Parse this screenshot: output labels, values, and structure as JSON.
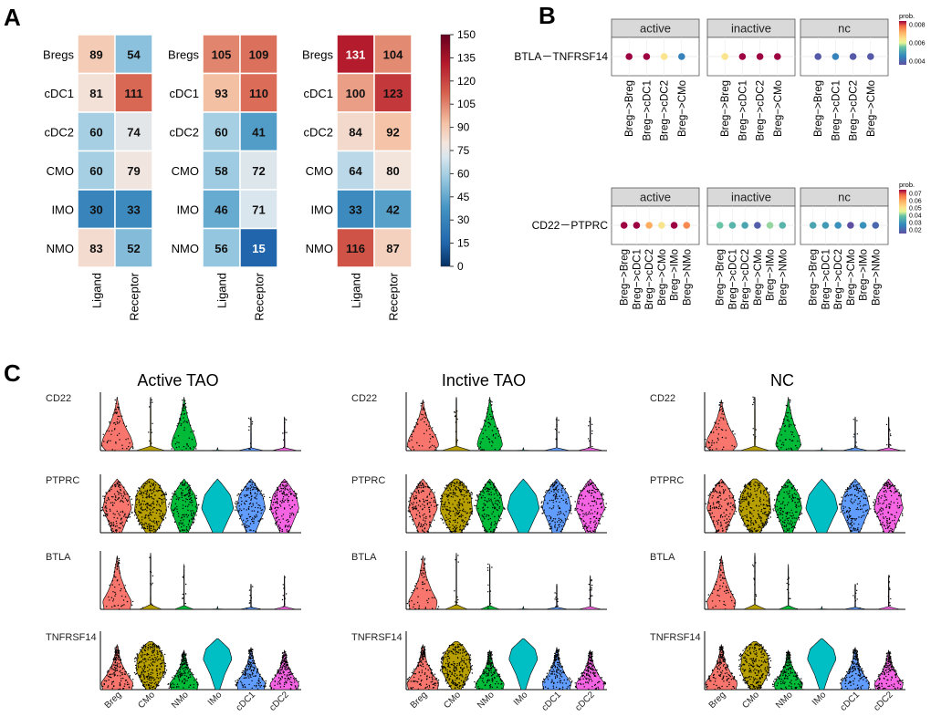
{
  "panel_labels": {
    "a": "A",
    "b": "B",
    "c": "C"
  },
  "heatmap": {
    "rows": [
      "Bregs",
      "cDC1",
      "cDC2",
      "CMO",
      "IMO",
      "NMO"
    ],
    "cols": [
      "Ligand",
      "Receptor"
    ],
    "colorbar_ticks": [
      "150",
      "135",
      "120",
      "105",
      "90",
      "75",
      "60",
      "45",
      "30",
      "15",
      "0"
    ]
  },
  "panel_b": {
    "top": {
      "row_label": "BTLA－TNFRSF14",
      "facets": [
        "active",
        "inactive",
        "nc"
      ],
      "pairs": [
        "Breg−>Breg",
        "Breg−>cDC1",
        "Breg−>cDC2",
        "Breg−>CMo"
      ],
      "legend_title": "prob.",
      "legend_ticks": [
        "0.008",
        "0.006",
        "0.004"
      ]
    },
    "bottom": {
      "row_label": "CD22－PTPRC",
      "facets": [
        "active",
        "inactive",
        "nc"
      ],
      "pairs": [
        "Breg−>Breg",
        "Breg−>cDC1",
        "Breg−>cDC2",
        "Breg−>CMo",
        "Breg−>IMo",
        "Breg−>NMo"
      ],
      "legend_title": "prob.",
      "legend_ticks": [
        "0.07",
        "0.06",
        "0.05",
        "0.04",
        "0.03",
        "0.02"
      ]
    }
  },
  "panel_c": {
    "titles": [
      "Active TAO",
      "Inctive TAO",
      "NC"
    ],
    "genes": [
      "CD22",
      "PTPRC",
      "BTLA",
      "TNFRSF14"
    ],
    "cell_types": [
      "Breg",
      "CMo",
      "NMo",
      "IMo",
      "cDC1",
      "cDC2"
    ]
  },
  "colors": {
    "Breg": "#f8766d",
    "CMo": "#b79f00",
    "NMo": "#00ba38",
    "IMo": "#00bfc4",
    "cDC1": "#619cff",
    "cDC2": "#f564e3"
  },
  "chart_data": [
    {
      "type": "heatmap",
      "title": "",
      "rows": [
        "Bregs",
        "cDC1",
        "cDC2",
        "CMO",
        "IMO",
        "NMO"
      ],
      "cols": [
        "Ligand",
        "Receptor"
      ],
      "values": [
        [
          89,
          54
        ],
        [
          81,
          111
        ],
        [
          60,
          74
        ],
        [
          60,
          79
        ],
        [
          30,
          33
        ],
        [
          83,
          52
        ]
      ],
      "color_range": [
        0,
        150
      ]
    },
    {
      "type": "heatmap",
      "title": "",
      "rows": [
        "Bregs",
        "cDC1",
        "cDC2",
        "CMO",
        "IMO",
        "NMO"
      ],
      "cols": [
        "Ligand",
        "Receptor"
      ],
      "values": [
        [
          105,
          109
        ],
        [
          93,
          110
        ],
        [
          60,
          41
        ],
        [
          58,
          72
        ],
        [
          46,
          71
        ],
        [
          56,
          15
        ]
      ],
      "color_range": [
        0,
        150
      ]
    },
    {
      "type": "heatmap",
      "title": "",
      "rows": [
        "Bregs",
        "cDC1",
        "cDC2",
        "CMO",
        "IMO",
        "NMO"
      ],
      "cols": [
        "Ligand",
        "Receptor"
      ],
      "values": [
        [
          131,
          104
        ],
        [
          100,
          123
        ],
        [
          84,
          92
        ],
        [
          64,
          80
        ],
        [
          33,
          42
        ],
        [
          116,
          87
        ]
      ],
      "color_range": [
        0,
        150
      ]
    },
    {
      "type": "scatter",
      "title": "",
      "series_label": "BTLA－TNFRSF14",
      "color_range": [
        0.003,
        0.0085
      ],
      "facets": [
        {
          "name": "active",
          "x": [
            "Breg−>Breg",
            "Breg−>cDC1",
            "Breg−>cDC2",
            "Breg−>CMo"
          ],
          "prob": [
            0.0085,
            0.0085,
            0.0062,
            0.004
          ]
        },
        {
          "name": "inactive",
          "x": [
            "Breg−>Breg",
            "Breg−>cDC1",
            "Breg−>cDC2",
            "Breg−>CMo"
          ],
          "prob": [
            0.0062,
            0.0085,
            0.0085,
            0.0085
          ]
        },
        {
          "name": "nc",
          "x": [
            "Breg−>Breg",
            "Breg−>cDC1",
            "Breg−>cDC2",
            "Breg−>CMo"
          ],
          "prob": [
            0.0032,
            0.004,
            0.0032,
            0.0032
          ]
        }
      ]
    },
    {
      "type": "scatter",
      "title": "",
      "series_label": "CD22－PTPRC",
      "color_range": [
        0.015,
        0.072
      ],
      "facets": [
        {
          "name": "active",
          "x": [
            "Breg−>Breg",
            "Breg−>cDC1",
            "Breg−>cDC2",
            "Breg−>CMo",
            "Breg−>IMo",
            "Breg−>NMo"
          ],
          "prob": [
            0.072,
            0.072,
            0.058,
            0.048,
            0.072,
            0.062
          ]
        },
        {
          "name": "inactive",
          "x": [
            "Breg−>Breg",
            "Breg−>cDC1",
            "Breg−>cDC2",
            "Breg−>CMo",
            "Breg−>IMo",
            "Breg−>NMo"
          ],
          "prob": [
            0.038,
            0.035,
            0.032,
            0.018,
            0.04,
            0.035
          ]
        },
        {
          "name": "nc",
          "x": [
            "Breg−>Breg",
            "Breg−>cDC1",
            "Breg−>cDC2",
            "Breg−>CMo",
            "Breg−>IMo",
            "Breg−>NMo"
          ],
          "prob": [
            0.032,
            0.03,
            0.028,
            0.015,
            0.028,
            0.02
          ]
        }
      ]
    },
    {
      "type": "violin",
      "title": "",
      "groups": [
        "Active TAO",
        "Inctive TAO",
        "NC"
      ],
      "genes": [
        "CD22",
        "PTPRC",
        "BTLA",
        "TNFRSF14"
      ],
      "x": [
        "Breg",
        "CMo",
        "NMo",
        "IMo",
        "cDC1",
        "cDC2"
      ]
    }
  ]
}
